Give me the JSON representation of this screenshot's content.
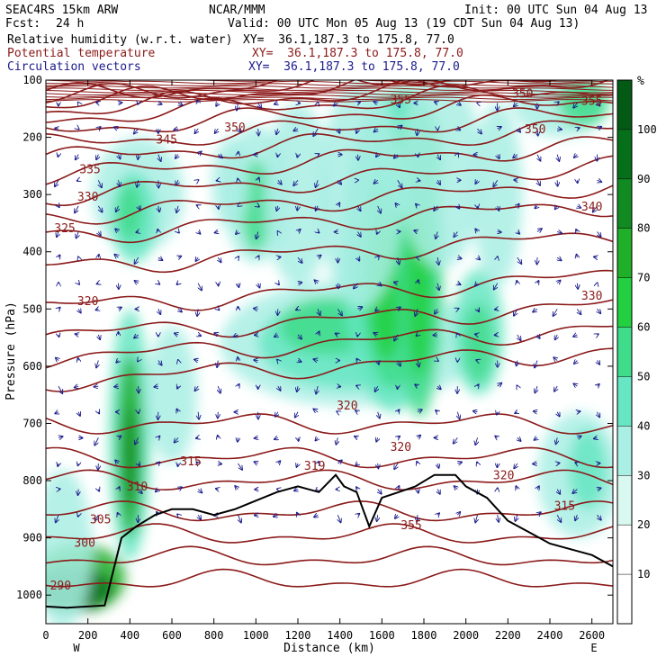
{
  "header": {
    "model": "SEAC4RS 15km ARW",
    "org": "NCAR/MMM",
    "init": "Init: 00 UTC Sun 04 Aug 13",
    "fcst_label": "Fcst:",
    "fcst_value": "24 h",
    "valid": "Valid: 00 UTC Mon 05 Aug 13 (19 CDT Sun 04 Aug 13)",
    "fields": [
      {
        "name": "Relative humidity (w.r.t. water)",
        "xy": "XY=  36.1,187.3 to 175.8, 77.0",
        "color": "#000000"
      },
      {
        "name": "Potential temperature",
        "xy": "XY=  36.1,187.3 to 175.8, 77.0",
        "color": "#8b1a1a"
      },
      {
        "name": "Circulation vectors",
        "xy": "XY=  36.1,187.3 to 175.8, 77.0",
        "color": "#1a1a8b"
      }
    ]
  },
  "chart_data": {
    "type": "heatmap",
    "xlabel": "Distance (km)",
    "ylabel": "Pressure (hPa)",
    "xlim": [
      0,
      2700
    ],
    "ylim": [
      1050,
      100
    ],
    "x_ticks": [
      0,
      200,
      400,
      600,
      800,
      1000,
      1200,
      1400,
      1600,
      1800,
      2000,
      2200,
      2400,
      2600
    ],
    "y_ticks": [
      100,
      200,
      300,
      400,
      500,
      600,
      700,
      800,
      900,
      1000
    ],
    "x_end_labels": [
      "W",
      "E"
    ],
    "colorbar": {
      "unit": "%",
      "levels": [
        10,
        20,
        30,
        40,
        50,
        60,
        70,
        80,
        90,
        100
      ],
      "colors": [
        "#ffffff",
        "#ffffff",
        "#d8f8f0",
        "#a9efe4",
        "#66e6c2",
        "#3fdc8b",
        "#22d040",
        "#1faf28",
        "#118a22",
        "#056f1a",
        "#035a14"
      ]
    },
    "theta_label_values": [
      "290",
      "300",
      "305",
      "310",
      "315",
      "315",
      "319",
      "320",
      "320",
      "320",
      "320",
      "325",
      "330",
      "330",
      "335",
      "340",
      "345",
      "350",
      "350",
      "350",
      "355",
      "355",
      "355"
    ],
    "theta_labels": [
      {
        "text": "290",
        "x": 70,
        "p": 982
      },
      {
        "text": "300",
        "x": 185,
        "p": 908
      },
      {
        "text": "305",
        "x": 260,
        "p": 867
      },
      {
        "text": "310",
        "x": 435,
        "p": 809
      },
      {
        "text": "315",
        "x": 690,
        "p": 765
      },
      {
        "text": "319",
        "x": 1280,
        "p": 773
      },
      {
        "text": "320",
        "x": 1435,
        "p": 668
      },
      {
        "text": "320",
        "x": 1690,
        "p": 740
      },
      {
        "text": "320",
        "x": 2180,
        "p": 790
      },
      {
        "text": "315",
        "x": 2470,
        "p": 843
      },
      {
        "text": "320",
        "x": 200,
        "p": 485
      },
      {
        "text": "325",
        "x": 90,
        "p": 358
      },
      {
        "text": "330",
        "x": 200,
        "p": 303
      },
      {
        "text": "330",
        "x": 2600,
        "p": 476
      },
      {
        "text": "335",
        "x": 210,
        "p": 255
      },
      {
        "text": "340",
        "x": 2600,
        "p": 320
      },
      {
        "text": "345",
        "x": 575,
        "p": 203
      },
      {
        "text": "350",
        "x": 900,
        "p": 182
      },
      {
        "text": "350",
        "x": 2330,
        "p": 185
      },
      {
        "text": "350",
        "x": 2270,
        "p": 123
      },
      {
        "text": "355",
        "x": 1690,
        "p": 133
      },
      {
        "text": "355",
        "x": 2600,
        "p": 135
      },
      {
        "text": "355",
        "x": 1740,
        "p": 877
      }
    ],
    "terrain": [
      [
        0,
        1020
      ],
      [
        100,
        1022
      ],
      [
        280,
        1018
      ],
      [
        360,
        900
      ],
      [
        430,
        880
      ],
      [
        520,
        860
      ],
      [
        600,
        850
      ],
      [
        700,
        850
      ],
      [
        800,
        860
      ],
      [
        900,
        850
      ],
      [
        1000,
        835
      ],
      [
        1100,
        820
      ],
      [
        1200,
        810
      ],
      [
        1300,
        820
      ],
      [
        1380,
        790
      ],
      [
        1420,
        810
      ],
      [
        1480,
        820
      ],
      [
        1540,
        880
      ],
      [
        1600,
        830
      ],
      [
        1680,
        820
      ],
      [
        1760,
        810
      ],
      [
        1850,
        790
      ],
      [
        1950,
        790
      ],
      [
        2000,
        810
      ],
      [
        2100,
        830
      ],
      [
        2200,
        870
      ],
      [
        2300,
        890
      ],
      [
        2400,
        910
      ],
      [
        2500,
        920
      ],
      [
        2600,
        930
      ],
      [
        2700,
        950
      ]
    ]
  }
}
